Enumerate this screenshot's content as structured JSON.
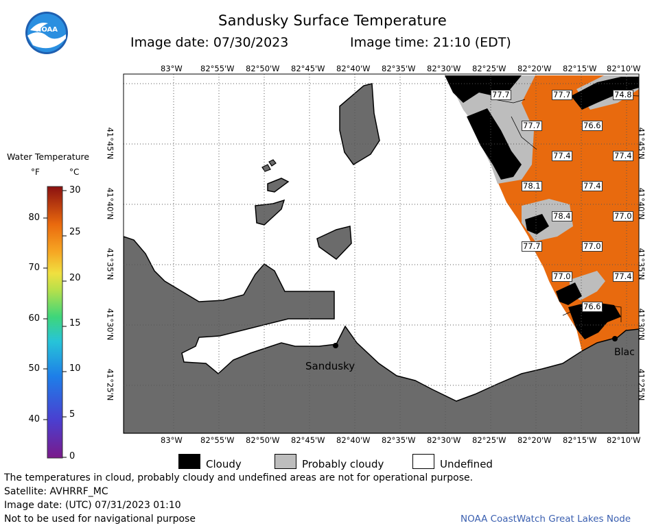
{
  "header": {
    "title": "Sandusky Surface Temperature",
    "image_date": "Image date: 07/30/2023",
    "image_time": "Image time: 21:10 (EDT)"
  },
  "logo": {
    "text": "NOAA"
  },
  "legend": {
    "title": "Water Temperature",
    "unit_f": "°F",
    "unit_c": "°C",
    "f_ticks": [
      "80",
      "70",
      "60",
      "50",
      "40"
    ],
    "c_ticks": [
      "30",
      "25",
      "20",
      "15",
      "10",
      "5",
      "0"
    ]
  },
  "map": {
    "lon_labels": [
      "83°W",
      "82°55'W",
      "82°50'W",
      "82°45'W",
      "82°40'W",
      "82°35'W",
      "82°30'W",
      "82°25'W",
      "82°20'W",
      "82°15'W",
      "82°10'W"
    ],
    "lat_labels": [
      "41°45'N",
      "41°40'N",
      "41°35'N",
      "41°30'N",
      "41°25'N"
    ],
    "temperature_labels": [
      "77.7",
      "77.7",
      "74.8",
      "77.7",
      "76.6",
      "77.4",
      "77.4",
      "78.1",
      "77.4",
      "78.4",
      "77.0",
      "77.7",
      "77.0",
      "77.0",
      "77.4",
      "76.6"
    ],
    "places": [
      "Sandusky",
      "Blac"
    ],
    "colors": {
      "land": "#6b6b6b",
      "cloudy": "#000000",
      "probably_cloudy": "#bdbdbd",
      "water_warm": "#e86a0e"
    }
  },
  "categories": {
    "cloudy": "Cloudy",
    "probably_cloudy": "Probably cloudy",
    "undefined": "Undefined"
  },
  "footer": {
    "disclaimer": "The temperatures in cloud, probably cloudy and undefined areas are not for operational purpose.",
    "satellite": "Satellite: AVHRRF_MC",
    "utc_date": "Image date: (UTC) 07/31/2023  01:10",
    "nav_warning": "Not to be used for navigational purpose",
    "credit": "NOAA CoastWatch Great Lakes Node"
  }
}
